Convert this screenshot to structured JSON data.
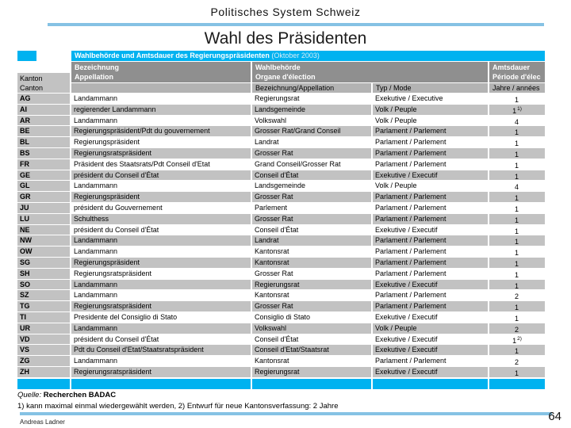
{
  "slide": {
    "header_title": "Politisches System Schweiz",
    "title": "Wahl des Präsidenten",
    "author": "Andreas Ladner",
    "page_number": "64"
  },
  "table": {
    "title": "Wahlbehörde und Amtsdauer des Regierungspräsidenten",
    "title_suffix": " (Oktober 2003)",
    "headers": {
      "kanton": [
        "Kanton",
        "Canton"
      ],
      "bezeichnung": [
        "Bezeichnung",
        "Appellation"
      ],
      "wahlbehoerde": [
        "Wahlbehörde",
        "Organe d'élection"
      ],
      "amtsdauer": [
        "Amtsdauer",
        "Période d'élec"
      ],
      "sub": {
        "bezeichnung": "Bezeichnung/Appellation",
        "typ": "Typ / Mode",
        "jahre": "Jahre / années"
      }
    },
    "rows": [
      {
        "canton": "AG",
        "appellation": "Landammann",
        "organe": "Regierungsrat",
        "typ": "Exekutive / Executive",
        "jahre": "1",
        "note": ""
      },
      {
        "canton": "AI",
        "appellation": "regierender Landammann",
        "organe": "Landsgemeinde",
        "typ": "Volk / Peuple",
        "jahre": "1",
        "note": "1)"
      },
      {
        "canton": "AR",
        "appellation": "Landammann",
        "organe": "Volkswahl",
        "typ": "Volk / Peuple",
        "jahre": "4",
        "note": ""
      },
      {
        "canton": "BE",
        "appellation": "Regierungspräsident/Pdt du gouvernement",
        "organe": "Grosser Rat/Grand Conseil",
        "typ": "Parlament / Parlement",
        "jahre": "1",
        "note": ""
      },
      {
        "canton": "BL",
        "appellation": "Regierungspräsident",
        "organe": "Landrat",
        "typ": "Parlament / Parlement",
        "jahre": "1",
        "note": ""
      },
      {
        "canton": "BS",
        "appellation": "Regierungsratspräsident",
        "organe": "Grosser Rat",
        "typ": "Parlament / Parlement",
        "jahre": "1",
        "note": ""
      },
      {
        "canton": "FR",
        "appellation": "Präsident des Staatsrats/Pdt Conseil d'Etat",
        "organe": "Grand Conseil/Grosser Rat",
        "typ": "Parlament / Parlement",
        "jahre": "1",
        "note": ""
      },
      {
        "canton": "GE",
        "appellation": "président du Conseil d'État",
        "organe": "Conseil d'État",
        "typ": "Exekutive / Executif",
        "jahre": "1",
        "note": ""
      },
      {
        "canton": "GL",
        "appellation": "Landammann",
        "organe": "Landsgemeinde",
        "typ": "Volk / Peuple",
        "jahre": "4",
        "note": ""
      },
      {
        "canton": "GR",
        "appellation": "Regierungspräsident",
        "organe": "Grosser Rat",
        "typ": "Parlament / Parlement",
        "jahre": "1",
        "note": ""
      },
      {
        "canton": "JU",
        "appellation": "président du Gouvernement",
        "organe": "Parlement",
        "typ": "Parlament / Parlement",
        "jahre": "1",
        "note": ""
      },
      {
        "canton": "LU",
        "appellation": "Schulthess",
        "organe": "Grosser Rat",
        "typ": "Parlament / Parlement",
        "jahre": "1",
        "note": ""
      },
      {
        "canton": "NE",
        "appellation": "président du Conseil d'État",
        "organe": "Conseil d'État",
        "typ": "Exekutive / Executif",
        "jahre": "1",
        "note": ""
      },
      {
        "canton": "NW",
        "appellation": "Landammann",
        "organe": "Landrat",
        "typ": "Parlament / Parlement",
        "jahre": "1",
        "note": ""
      },
      {
        "canton": "OW",
        "appellation": "Landammann",
        "organe": "Kantonsrat",
        "typ": "Parlament / Parlement",
        "jahre": "1",
        "note": ""
      },
      {
        "canton": "SG",
        "appellation": "Regierungspräsident",
        "organe": "Kantonsrat",
        "typ": "Parlament / Parlement",
        "jahre": "1",
        "note": ""
      },
      {
        "canton": "SH",
        "appellation": "Regierungsratspräsident",
        "organe": "Grosser Rat",
        "typ": "Parlament / Parlement",
        "jahre": "1",
        "note": ""
      },
      {
        "canton": "SO",
        "appellation": "Landammann",
        "organe": "Regierungsrat",
        "typ": "Exekutive / Executif",
        "jahre": "1",
        "note": ""
      },
      {
        "canton": "SZ",
        "appellation": "Landammann",
        "organe": "Kantonsrat",
        "typ": "Parlament / Parlement",
        "jahre": "2",
        "note": ""
      },
      {
        "canton": "TG",
        "appellation": "Regierungsratspräsident",
        "organe": "Grosser Rat",
        "typ": "Parlament / Parlement",
        "jahre": "1",
        "note": ""
      },
      {
        "canton": "TI",
        "appellation": "Presidente del Consiglio di Stato",
        "organe": "Consiglio di Stato",
        "typ": "Exekutive / Executif",
        "jahre": "1",
        "note": ""
      },
      {
        "canton": "UR",
        "appellation": "Landammann",
        "organe": "Volkswahl",
        "typ": "Volk / Peuple",
        "jahre": "2",
        "note": ""
      },
      {
        "canton": "VD",
        "appellation": "président du Conseil d'État",
        "organe": "Conseil d'État",
        "typ": "Exekutive / Executif",
        "jahre": "1",
        "note": "2)"
      },
      {
        "canton": "VS",
        "appellation": "Pdt du Conseil d'Etat/Staatsratspräsident",
        "organe": "Conseil d'Etat/Staatsrat",
        "typ": "Exekutive / Executif",
        "jahre": "1",
        "note": ""
      },
      {
        "canton": "ZG",
        "appellation": "Landammann",
        "organe": "Kantonsrat",
        "typ": "Parlament / Parlement",
        "jahre": "2",
        "note": ""
      },
      {
        "canton": "ZH",
        "appellation": "Regierungsratspräsident",
        "organe": "Regierungsrat",
        "typ": "Exekutive / Executif",
        "jahre": "1",
        "note": ""
      }
    ]
  },
  "footer": {
    "source_label": "Quelle:",
    "source_value": "Recherchen BADAC",
    "footnote": "1) kann maximal einmal wiedergewählt werden, 2) Entwurf für neue Kantonsverfassung: 2 Jahre"
  },
  "colors": {
    "cyan": "#00b2f0",
    "header_gray": "#8f8f8f",
    "subheader_gray": "#b3b3b3",
    "stripe_gray": "#c2c2c2",
    "rule_blue": "#85c2e4",
    "suffix": "#d8edf8"
  }
}
